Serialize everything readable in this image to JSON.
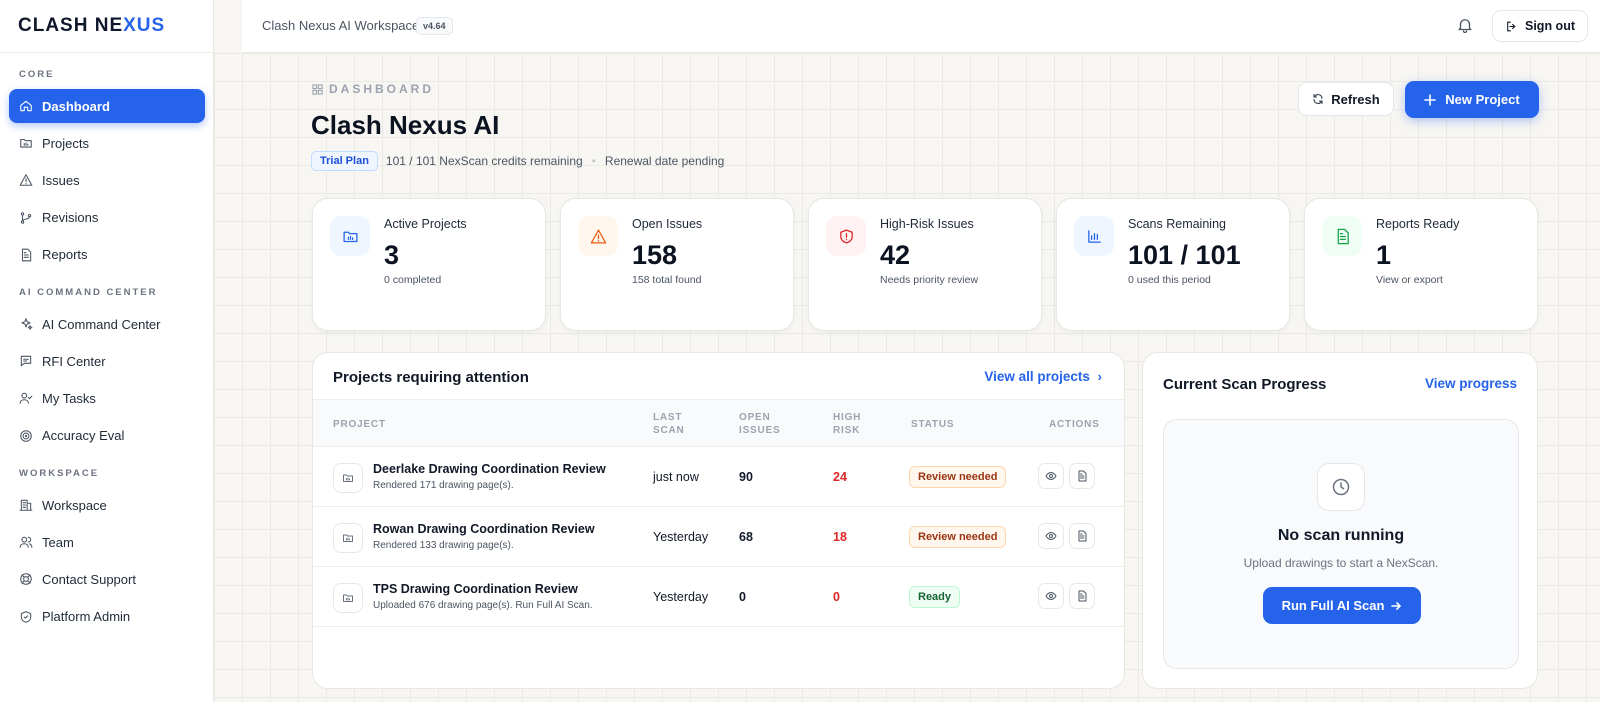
{
  "app": {
    "logo_prefix": "CLASH NE",
    "logo_highlight": "XUS",
    "workspace_title": "Clash Nexus AI Workspace",
    "version": "v4.64"
  },
  "header": {
    "sign_out": "Sign out"
  },
  "sidebar": {
    "sections": [
      {
        "label": "CORE",
        "items": [
          {
            "label": "Dashboard",
            "icon": "home-icon",
            "active": true
          },
          {
            "label": "Projects",
            "icon": "folder-icon"
          },
          {
            "label": "Issues",
            "icon": "warning-icon"
          },
          {
            "label": "Revisions",
            "icon": "branch-icon"
          },
          {
            "label": "Reports",
            "icon": "document-icon"
          }
        ]
      },
      {
        "label": "AI COMMAND CENTER",
        "items": [
          {
            "label": "AI Command Center",
            "icon": "sparkles-icon"
          },
          {
            "label": "RFI Center",
            "icon": "chat-icon"
          },
          {
            "label": "My Tasks",
            "icon": "user-check-icon"
          },
          {
            "label": "Accuracy Eval",
            "icon": "target-icon"
          }
        ]
      },
      {
        "label": "WORKSPACE",
        "items": [
          {
            "label": "Workspace",
            "icon": "building-icon"
          },
          {
            "label": "Team",
            "icon": "team-icon"
          },
          {
            "label": "Contact Support",
            "icon": "lifebuoy-icon"
          },
          {
            "label": "Platform Admin",
            "icon": "shield-icon"
          }
        ]
      }
    ]
  },
  "page": {
    "eyebrow": "DASHBOARD",
    "title": "Clash Nexus AI",
    "plan_badge": "Trial Plan",
    "credits": "101 / 101 NexScan credits remaining",
    "renewal": "Renewal date pending",
    "refresh": "Refresh",
    "new_project": "New Project"
  },
  "stats": [
    {
      "label": "Active Projects",
      "value": "3",
      "sub": "0 completed",
      "icon": "folder-chart-icon",
      "color": "#2563eb",
      "bg": "#eff6ff"
    },
    {
      "label": "Open Issues",
      "value": "158",
      "sub": "158 total found",
      "icon": "warning-icon",
      "color": "#ea580c",
      "bg": "#fff7ed"
    },
    {
      "label": "High-Risk Issues",
      "value": "42",
      "sub": "Needs priority review",
      "icon": "shield-alert-icon",
      "color": "#dc2626",
      "bg": "#fef2f2"
    },
    {
      "label": "Scans Remaining",
      "value": "101 / 101",
      "sub": "0 used this period",
      "icon": "bar-chart-icon",
      "color": "#2563eb",
      "bg": "#eff6ff"
    },
    {
      "label": "Reports Ready",
      "value": "1",
      "sub": "View or export",
      "icon": "document-icon",
      "color": "#16a34a",
      "bg": "#f0fdf4"
    }
  ],
  "projects": {
    "title": "Projects requiring attention",
    "view_all": "View all projects",
    "columns": {
      "project": "PROJECT",
      "last_scan": "LAST\nSCAN",
      "open_issues": "OPEN\nISSUES",
      "high_risk": "HIGH\nRISK",
      "status": "STATUS",
      "actions": "ACTIONS"
    },
    "rows": [
      {
        "name": "Deerlake Drawing Coordination Review",
        "sub": "Rendered 171 drawing page(s).",
        "last_scan": "just now",
        "open": "90",
        "risk": "24",
        "status": "Review needed",
        "status_type": "review"
      },
      {
        "name": "Rowan Drawing Coordination Review",
        "sub": "Rendered 133 drawing page(s).",
        "last_scan": "Yesterday",
        "open": "68",
        "risk": "18",
        "status": "Review needed",
        "status_type": "review"
      },
      {
        "name": "TPS Drawing Coordination Review",
        "sub": "Uploaded 676 drawing page(s). Run Full AI Scan.",
        "last_scan": "Yesterday",
        "open": "0",
        "risk": "0",
        "status": "Ready",
        "status_type": "ready"
      }
    ]
  },
  "scan": {
    "title": "Current Scan Progress",
    "link": "View progress",
    "empty_title": "No scan running",
    "empty_sub": "Upload drawings to start a NexScan.",
    "button": "Run Full AI Scan"
  }
}
